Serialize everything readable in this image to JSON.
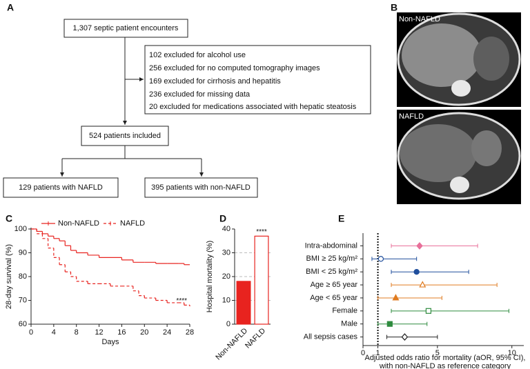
{
  "flowchart": {
    "panel": "A",
    "start": "1,307 septic patient encounters",
    "exclusions": [
      "102 excluded for alcohol use",
      "256 excluded for no computed tomography images",
      "169 excluded for cirrhosis and hepatitis",
      "236 excluded for missing data",
      "20 excluded for medications associated with hepatic steatosis"
    ],
    "included": "524 patients included",
    "groups": [
      "129 patients with NAFLD",
      "395 patients with non-NAFLD"
    ]
  },
  "images": {
    "panel": "B",
    "items": [
      {
        "label": "Non-NAFLD"
      },
      {
        "label": "NAFLD"
      }
    ]
  },
  "chart_data": [
    {
      "panel": "C",
      "type": "line",
      "step": true,
      "xlabel": "Days",
      "ylabel": "28-day survival (%)",
      "xlim": [
        0,
        28
      ],
      "xticks": [
        0,
        4,
        8,
        12,
        16,
        20,
        24,
        28
      ],
      "ylim": [
        60,
        100
      ],
      "yticks": [
        60,
        70,
        80,
        90,
        100
      ],
      "annotation": "****",
      "series": [
        {
          "name": "Non-NAFLD",
          "color": "#e8231f",
          "dashed": false,
          "x": [
            0,
            1,
            2,
            3,
            4,
            5,
            6,
            7,
            8,
            10,
            12,
            14,
            16,
            18,
            20,
            22,
            24,
            26,
            27,
            28
          ],
          "values": [
            100,
            99,
            98,
            97,
            96,
            95,
            93,
            91,
            90,
            89,
            88,
            88,
            87,
            86,
            86,
            85.5,
            85.5,
            85.5,
            85,
            85
          ]
        },
        {
          "name": "NAFLD",
          "color": "#e8231f",
          "dashed": true,
          "x": [
            0,
            1,
            2,
            3,
            4,
            5,
            6,
            7,
            8,
            10,
            12,
            14,
            16,
            18,
            19,
            20,
            22,
            24,
            26,
            27,
            28
          ],
          "values": [
            100,
            98,
            96,
            92,
            88,
            85,
            82,
            80,
            78,
            77,
            77,
            76,
            76,
            74,
            72,
            71,
            70,
            69,
            69,
            68,
            67.5
          ]
        }
      ]
    },
    {
      "panel": "D",
      "type": "bar",
      "ylabel": "Hospital mortality (%)",
      "categories": [
        "Non-NAFLD",
        "NAFLD"
      ],
      "values": [
        18,
        37
      ],
      "colors": [
        "#e8231f",
        "#ffffff"
      ],
      "edgecolor": "#e8231f",
      "ylim": [
        0,
        40
      ],
      "yticks": [
        0,
        10,
        20,
        30,
        40
      ],
      "grid": true,
      "annotation": "****"
    },
    {
      "panel": "E",
      "type": "forest",
      "xlabel": [
        "Adjusted odds ratio for mortality (aOR, 95% CI),",
        "with non-NAFLD as reference category"
      ],
      "categories": [
        "Intra-abdominal",
        "BMI ≥ 25 kg/m²",
        "BMI < 25 kg/m²",
        "Age ≥ 65 year",
        "Age < 65 year",
        "Female",
        "Male",
        "All sepsis cases"
      ],
      "values": [
        3.8,
        1.2,
        3.6,
        4.0,
        2.2,
        4.4,
        1.8,
        2.8
      ],
      "ci_low": [
        1.9,
        0.6,
        1.9,
        1.9,
        1.0,
        1.9,
        1.0,
        1.6
      ],
      "ci_high": [
        7.7,
        3.6,
        7.1,
        9.0,
        5.3,
        9.8,
        4.3,
        5.0
      ],
      "colors": [
        "#e8709a",
        "#1f4e9c",
        "#1f4e9c",
        "#e07b20",
        "#e07b20",
        "#2e8b3e",
        "#2e8b3e",
        "#222222"
      ],
      "markers": [
        "diamond",
        "circle",
        "circle",
        "triangle",
        "triangle",
        "square",
        "square",
        "diamond"
      ],
      "filled": [
        true,
        false,
        true,
        false,
        true,
        false,
        true,
        false
      ],
      "xlim": [
        0,
        10.8
      ],
      "xticks": [
        0,
        1,
        5,
        10
      ],
      "reference": 1
    }
  ]
}
